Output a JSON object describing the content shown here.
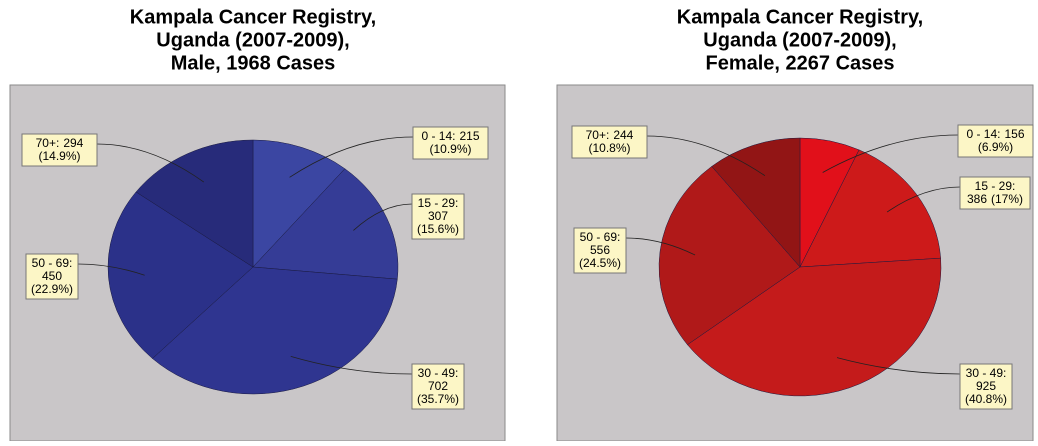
{
  "chart_data": [
    {
      "type": "pie",
      "title": [
        "Kampala Cancer Registry,",
        "Uganda  (2007-2009),",
        "Male, 1968 Cases"
      ],
      "categories": [
        "0 - 14:",
        "15 - 29:",
        "30 - 49:",
        "50 - 69:",
        "70+:"
      ],
      "values": [
        215,
        307,
        702,
        450,
        294
      ],
      "percent_labels": [
        "(10.9%)",
        "(15.6%)",
        "(35.7%)",
        "(22.9%)",
        "(14.9%)"
      ],
      "colors": [
        "#3b46a2",
        "#353c96",
        "#2f3590",
        "#2b3189",
        "#272b7a"
      ]
    },
    {
      "type": "pie",
      "title": [
        "Kampala Cancer Registry,",
        "Uganda  (2007-2009),",
        "Female, 2267 Cases"
      ],
      "categories": [
        "0 - 14:",
        "15 - 29:",
        "30 - 49:",
        "50 - 69:",
        "70+:"
      ],
      "values": [
        156,
        386,
        925,
        556,
        244
      ],
      "percent_labels": [
        "(6.9%)",
        "(17%)",
        "(40.8%)",
        "(24.5%)",
        "(10.8%)"
      ],
      "colors": [
        "#e1101a",
        "#cd1a1a",
        "#c41b1b",
        "#b01919",
        "#921515"
      ]
    }
  ]
}
